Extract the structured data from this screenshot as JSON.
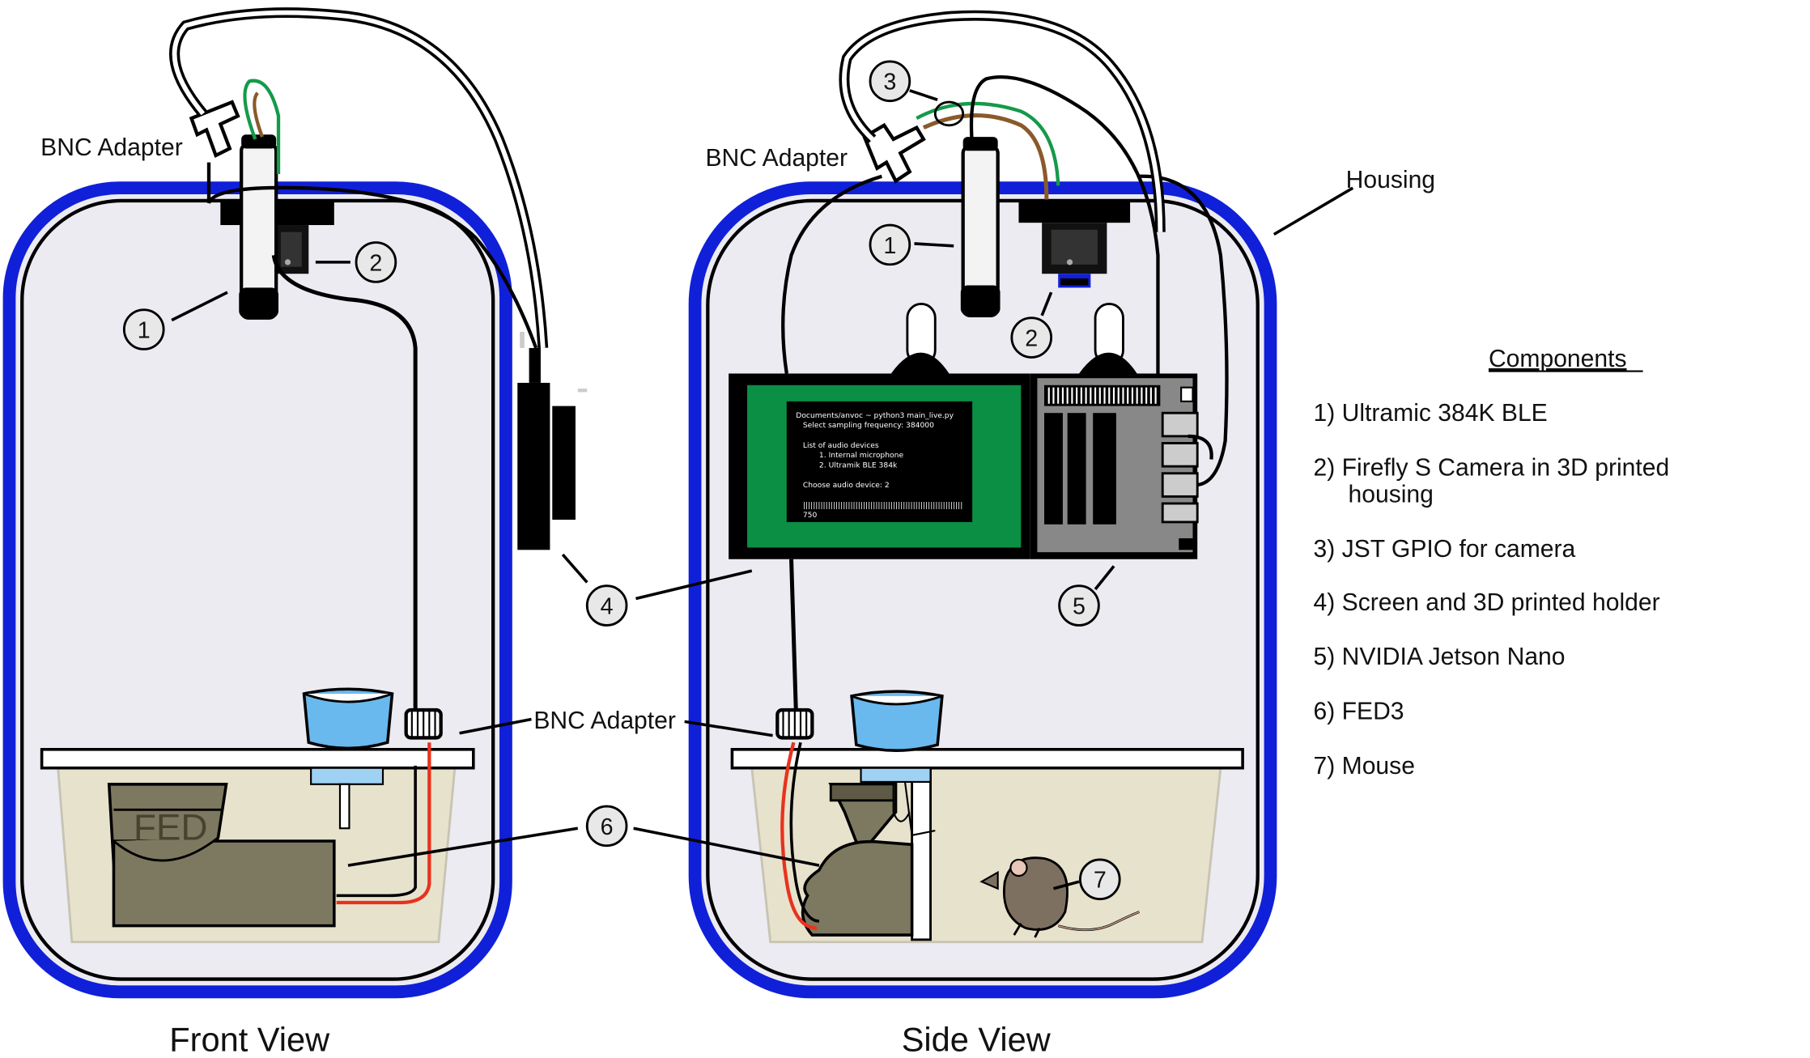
{
  "views": {
    "front_title": "Front View",
    "side_title": "Side View"
  },
  "labels": {
    "bnc_adapter_front": "BNC Adapter",
    "bnc_adapter_side": "BNC Adapter",
    "bnc_adapter_middle": "BNC Adapter",
    "housing": "Housing",
    "fed": "FED"
  },
  "callouts": {
    "front_1": "1",
    "front_2": "2",
    "side_1": "1",
    "side_2": "2",
    "side_3": "3",
    "c4": "4",
    "c5": "5",
    "c6": "6",
    "c7": "7"
  },
  "components": {
    "heading": "Components",
    "items": [
      "1) Ultramic 384K BLE",
      "2) Firefly S Camera in 3D printed",
      "housing",
      "3) JST GPIO for camera",
      "4) Screen and 3D printed holder",
      "5) NVIDIA Jetson Nano",
      "6) FED3",
      "7) Mouse"
    ]
  },
  "screen": {
    "lines": [
      "Documents/anvoc ~ python3 main_live.py",
      "Select sampling frequency: 384000",
      "",
      "List of audio devices",
      "1. Internal microphone",
      "2. Ultramik BLE 384k",
      "",
      "Choose audio device: 2",
      "",
      "||||||||||||||||||||||||||||||||||||||||||||||||||||||||||||||||",
      "750"
    ]
  },
  "colors": {
    "housing_border": "#1020d8",
    "housing_fill": "#ecebf2",
    "cage_fill": "#e7e2cc",
    "fed_fill": "#7d7860",
    "screen_green": "#0a8f45",
    "water": "#69b8ee",
    "red_wire": "#e8321e",
    "green_wire": "#149a4a",
    "brown_wire": "#8a5a2b"
  }
}
